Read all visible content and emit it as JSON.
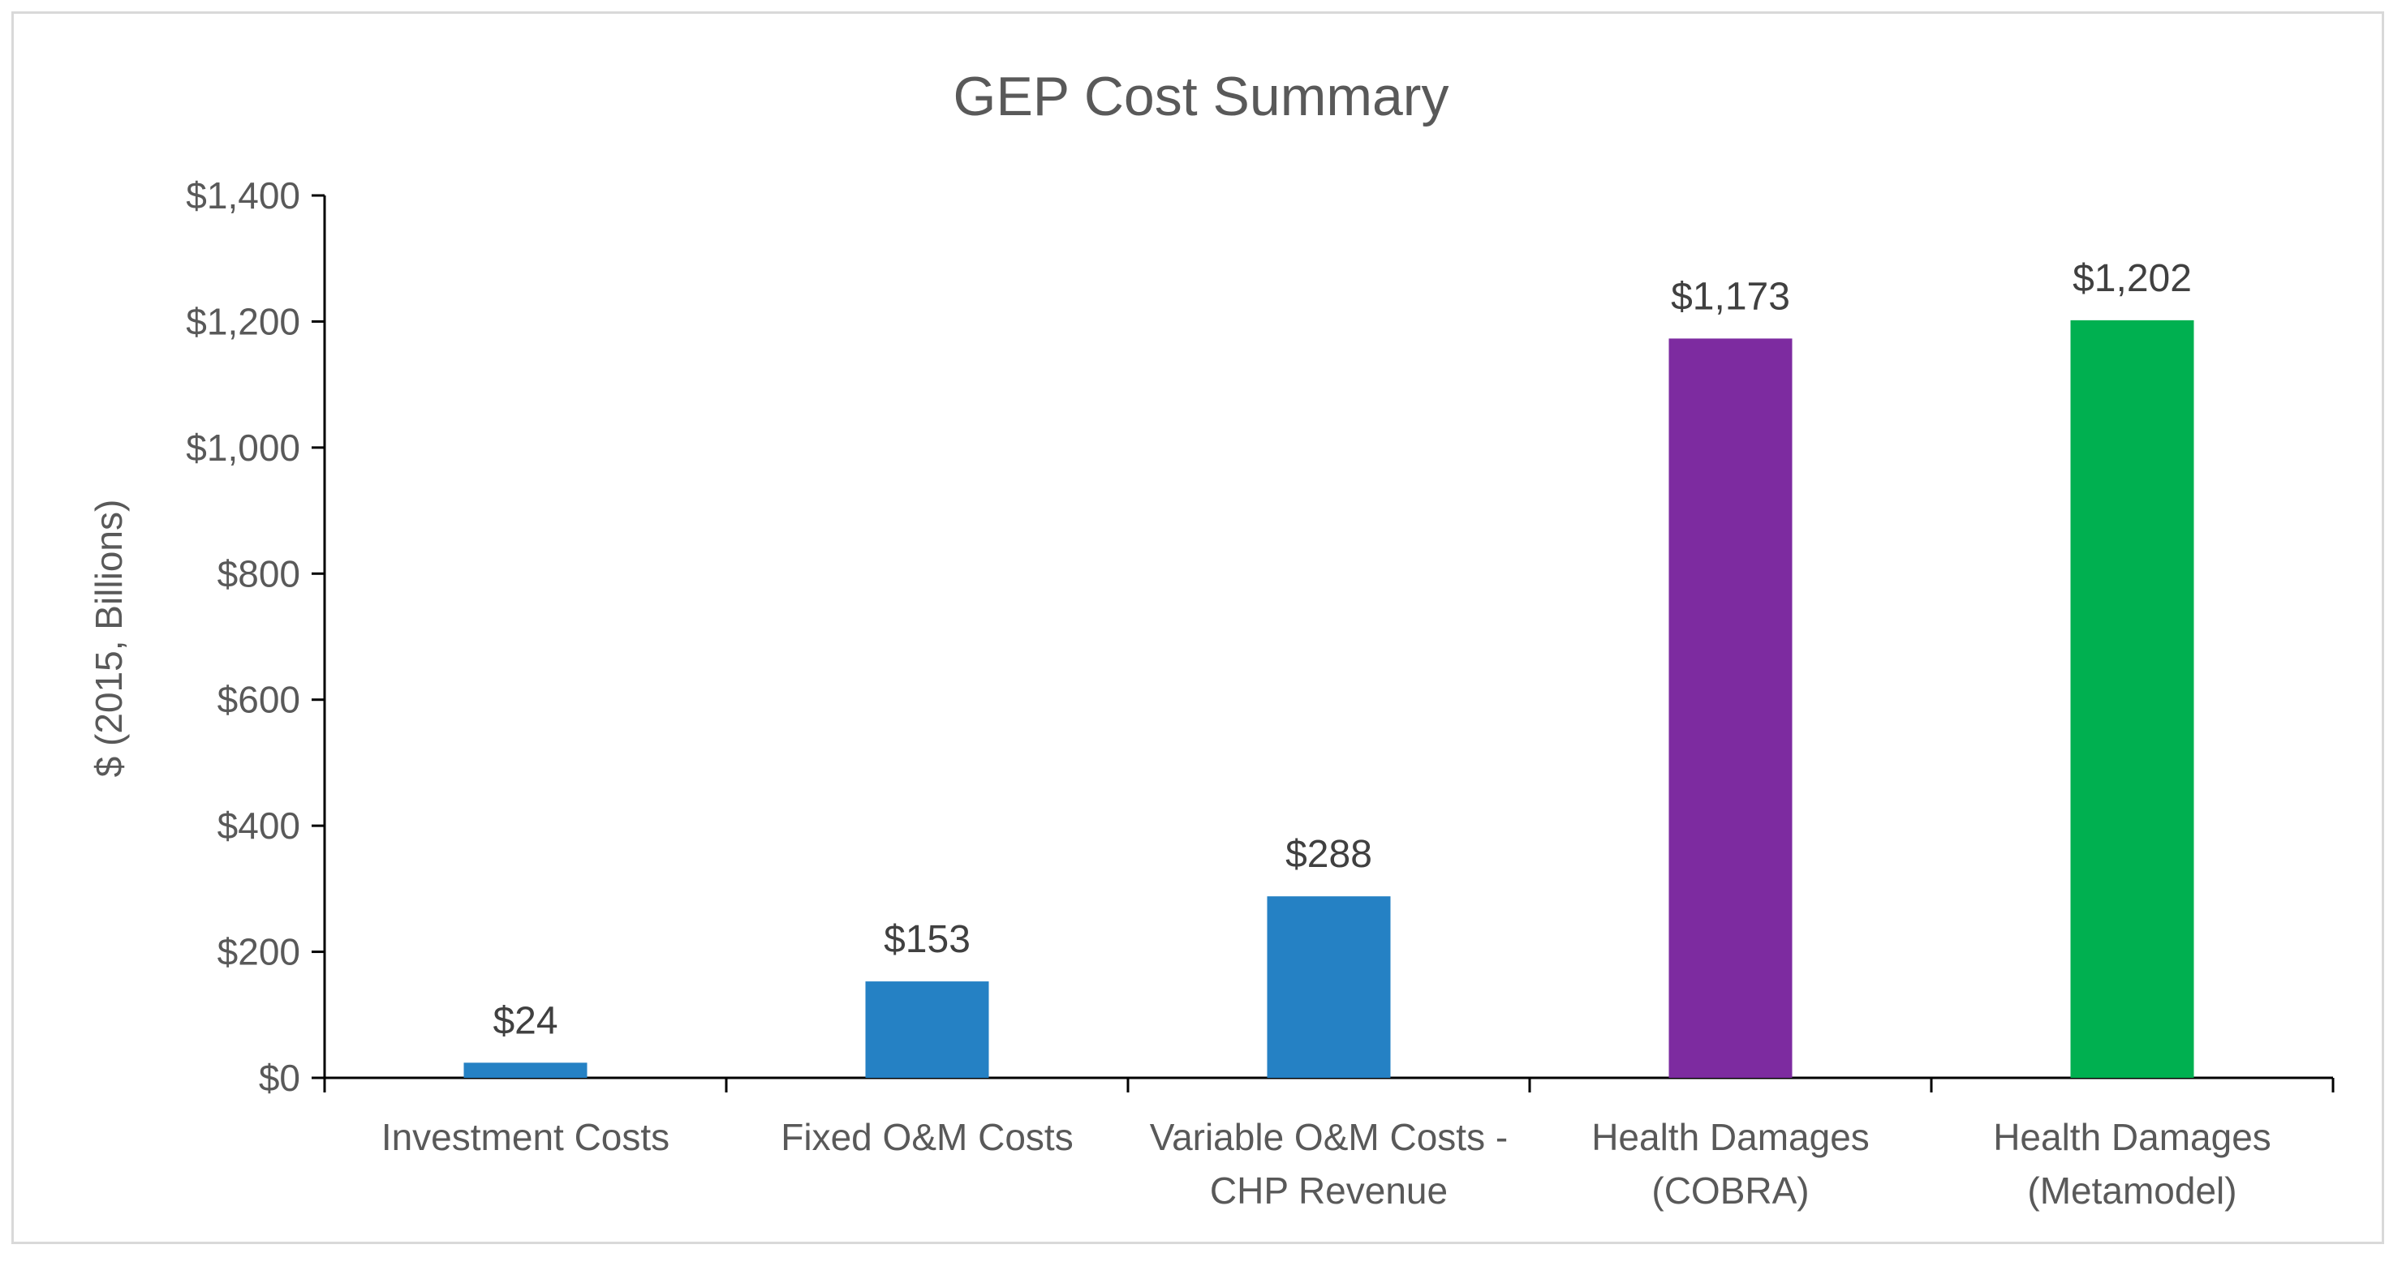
{
  "chart_data": {
    "type": "bar",
    "title": "GEP Cost Summary",
    "xlabel": "",
    "ylabel": "$ (2015, Billions)",
    "ylim": [
      0,
      1400
    ],
    "ytick_step": 200,
    "ytick_labels": [
      "$0",
      "$200",
      "$400",
      "$600",
      "$800",
      "$1,000",
      "$1,200",
      "$1,400"
    ],
    "grid": false,
    "legend": "none",
    "categories": [
      [
        "Investment Costs"
      ],
      [
        "Fixed O&M Costs"
      ],
      [
        "Variable O&M Costs -",
        "CHP Revenue"
      ],
      [
        "Health Damages",
        "(COBRA)"
      ],
      [
        "Health Damages",
        "(Metamodel)"
      ]
    ],
    "values": [
      24,
      153,
      288,
      1173,
      1202
    ],
    "data_labels": [
      "$24",
      "$153",
      "$288",
      "$1,173",
      "$1,202"
    ],
    "colors": [
      "#2581c4",
      "#2581c4",
      "#2581c4",
      "#7d2ba0",
      "#00b050"
    ]
  },
  "colors": {
    "axis": "#000000",
    "text": "#595959",
    "title": "#595959",
    "frame": "#d9d9d9"
  }
}
